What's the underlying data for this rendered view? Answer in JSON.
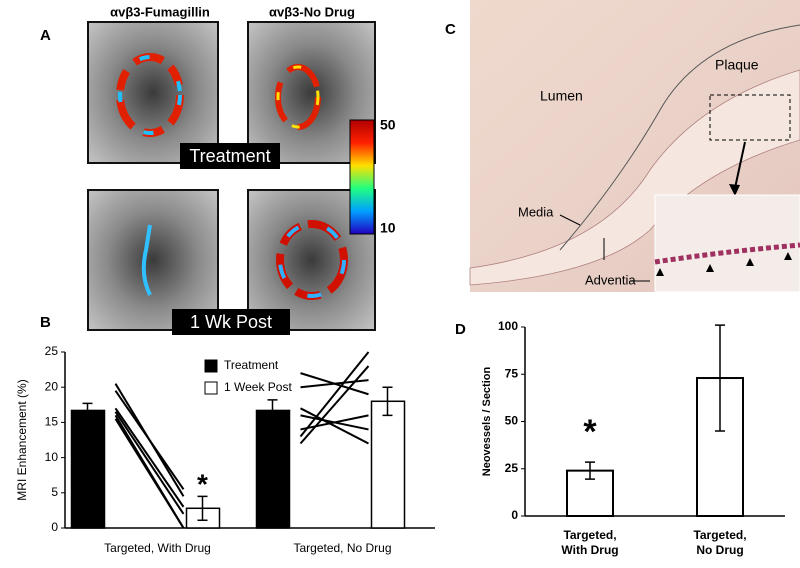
{
  "panels": {
    "a": {
      "label": "A",
      "col1": "αvβ3-Fumagillin",
      "col2": "αvβ3-No Drug",
      "row1": "Treatment",
      "row2": "1 Wk Post",
      "scale_max": "50",
      "scale_min": "10"
    },
    "b": {
      "label": "B"
    },
    "c": {
      "label": "C",
      "lumen": "Lumen",
      "plaque": "Plaque",
      "media": "Media",
      "adventia": "Adventia"
    },
    "d": {
      "label": "D"
    }
  },
  "chart_data": [
    {
      "type": "bar",
      "ylabel": "MRI Enhancement (%)",
      "ylim": [
        0,
        25
      ],
      "yticks": [
        0,
        5,
        10,
        15,
        20,
        25
      ],
      "categories": [
        "Targeted, With Drug",
        "Targeted, No Drug"
      ],
      "series": [
        {
          "name": "Treatment",
          "color": "#000000",
          "values": [
            16.7,
            16.7
          ],
          "errors": [
            1,
            1.5
          ]
        },
        {
          "name": "1 Week Post",
          "color": "#ffffff",
          "values": [
            2.8,
            18
          ],
          "errors": [
            1.7,
            2
          ]
        }
      ],
      "paired_lines": [
        [
          [
            20.5,
            4.5
          ],
          [
            19.5,
            5.5
          ],
          [
            17,
            3
          ],
          [
            16.5,
            2
          ],
          [
            16,
            0
          ],
          [
            15.5,
            0
          ]
        ],
        [
          [
            22,
            19
          ],
          [
            20,
            21
          ],
          [
            13,
            25
          ],
          [
            12,
            23
          ],
          [
            16,
            14
          ],
          [
            17,
            12
          ],
          [
            14,
            16
          ]
        ]
      ],
      "annotation": "*"
    },
    {
      "type": "bar",
      "ylabel": "Neovessels / Section",
      "ylim": [
        0,
        100
      ],
      "yticks": [
        0,
        25,
        50,
        75,
        100
      ],
      "categories": [
        "Targeted,\nWith Drug",
        "Targeted,\nNo Drug"
      ],
      "values": [
        24,
        73
      ],
      "errors": [
        4.5,
        28
      ],
      "color": "#ffffff",
      "annotation": "*"
    }
  ]
}
